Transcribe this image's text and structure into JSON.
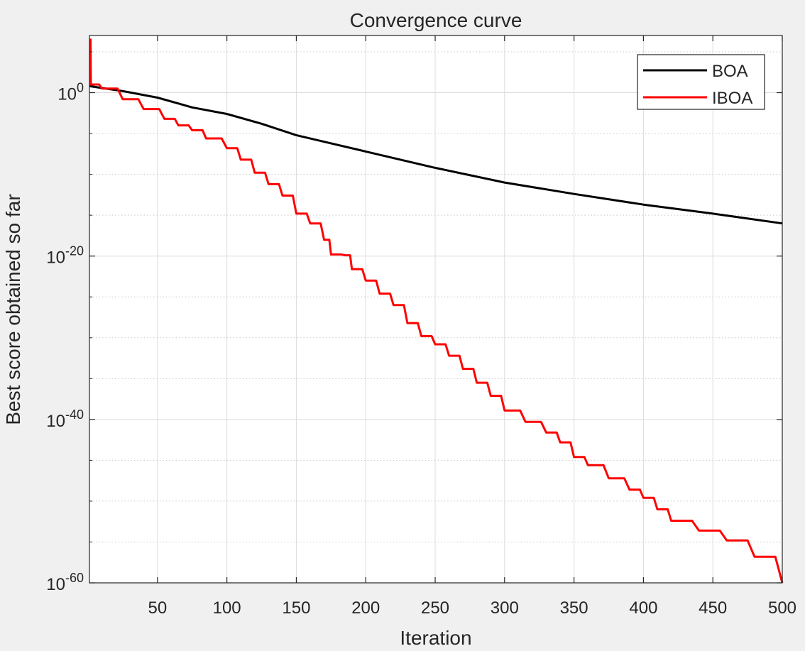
{
  "chart_data": {
    "type": "line",
    "title": "Convergence curve",
    "xlabel": "Iteration",
    "ylabel": "Best score obtained so far",
    "yscale": "log",
    "xlim": [
      1,
      500
    ],
    "ylim_exponent": [
      -60,
      7
    ],
    "x_ticks": [
      50,
      100,
      150,
      200,
      250,
      300,
      350,
      400,
      450,
      500
    ],
    "y_tick_exponents": [
      0,
      -20,
      -40,
      -60
    ],
    "y_tick_base": "10",
    "grid": true,
    "legend_position": "top-right",
    "series": [
      {
        "name": "BOA",
        "color": "#000000",
        "x": [
          1,
          25,
          50,
          75,
          100,
          125,
          150,
          175,
          200,
          250,
          300,
          350,
          400,
          450,
          500
        ],
        "log10_y": [
          0.8,
          0.2,
          -0.6,
          -1.8,
          -2.6,
          -3.8,
          -5.2,
          -6.2,
          -7.2,
          -9.2,
          -11.0,
          -12.4,
          -13.7,
          -14.8,
          -16.0
        ]
      },
      {
        "name": "IBOA",
        "color": "#ff0000",
        "x": [
          1,
          2,
          10,
          25,
          40,
          55,
          65,
          75,
          85,
          100,
          110,
          120,
          130,
          140,
          150,
          160,
          170,
          175,
          185,
          190,
          200,
          210,
          220,
          230,
          240,
          250,
          260,
          270,
          280,
          290,
          300,
          315,
          330,
          340,
          350,
          360,
          375,
          390,
          400,
          410,
          420,
          440,
          460,
          480,
          500
        ],
        "log10_y": [
          6.5,
          1.0,
          0.5,
          -0.8,
          -2.0,
          -3.2,
          -4.0,
          -4.6,
          -5.6,
          -6.8,
          -8.2,
          -9.8,
          -11.2,
          -12.6,
          -14.8,
          -16.0,
          -18.0,
          -19.8,
          -19.9,
          -21.6,
          -23.0,
          -24.6,
          -26.0,
          -28.2,
          -29.8,
          -30.8,
          -32.2,
          -33.8,
          -35.5,
          -37.1,
          -38.9,
          -40.3,
          -41.6,
          -42.8,
          -44.6,
          -45.6,
          -47.2,
          -48.6,
          -49.6,
          -51.0,
          -52.4,
          -53.6,
          -54.8,
          -56.8,
          -60.0
        ]
      }
    ]
  }
}
